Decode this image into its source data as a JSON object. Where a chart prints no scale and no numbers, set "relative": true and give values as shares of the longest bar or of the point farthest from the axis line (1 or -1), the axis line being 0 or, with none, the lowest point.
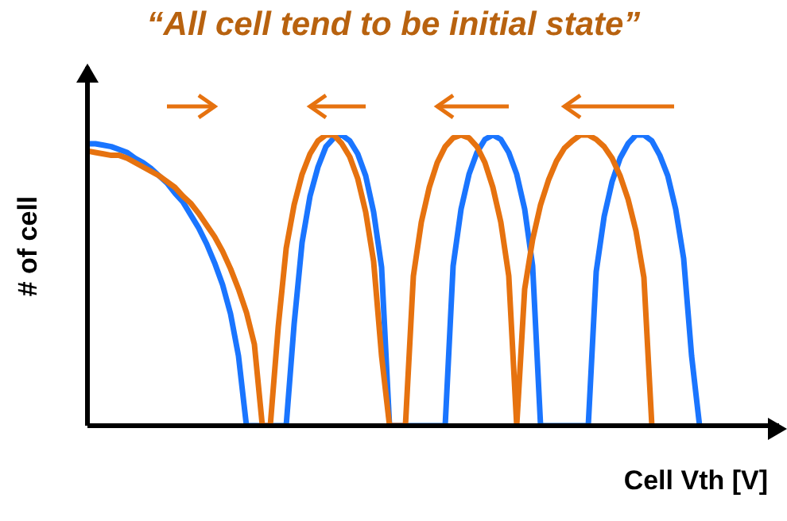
{
  "chart_data": {
    "type": "line",
    "title": "“All cell tend to be initial state”",
    "xlabel": "Cell Vth [V]",
    "ylabel": "# of cell",
    "relative": true,
    "categories": [
      null,
      null,
      null,
      null,
      null,
      null,
      null,
      null,
      null,
      null,
      null,
      null,
      null,
      null,
      null,
      null,
      null,
      null,
      null,
      null,
      null,
      null,
      null,
      null,
      null,
      null,
      null,
      null,
      null,
      null,
      null,
      null,
      null,
      null,
      null,
      null,
      null,
      null,
      null,
      null,
      null,
      null,
      null,
      null,
      null,
      null,
      null,
      null,
      null,
      null,
      null,
      null,
      null,
      null,
      null,
      null,
      null,
      null,
      null,
      null,
      null,
      null,
      null,
      null,
      null,
      null,
      null,
      null,
      null,
      null,
      null,
      null,
      null,
      null,
      null,
      null,
      null,
      null
    ],
    "series": [
      {
        "color": "#1a75ff",
        "values": [
          0.97,
          0.97,
          0.965,
          0.96,
          0.95,
          0.94,
          0.92,
          0.905,
          0.885,
          0.86,
          0.835,
          0.8,
          0.77,
          0.725,
          0.68,
          0.625,
          0.56,
          0.485,
          0.385,
          0.24,
          0,
          null,
          null,
          null,
          null,
          0,
          0.35,
          0.63,
          0.79,
          0.89,
          0.96,
          0.99,
          1,
          0.98,
          0.935,
          0.86,
          0.735,
          0.545,
          0,
          null,
          null,
          null,
          null,
          null,
          null,
          0,
          0.55,
          0.745,
          0.865,
          0.94,
          0.985,
          1,
          0.985,
          0.94,
          0.865,
          0.745,
          0.55,
          0,
          null,
          null,
          null,
          null,
          null,
          0,
          0.53,
          0.72,
          0.84,
          0.92,
          0.97,
          1,
          1,
          0.98,
          0.93,
          0.86,
          0.745,
          0.575,
          0.24,
          0
        ]
      },
      {
        "color": "#e6720f",
        "values": [
          0.945,
          0.94,
          0.935,
          0.93,
          0.93,
          0.92,
          0.905,
          0.89,
          0.875,
          0.86,
          0.84,
          0.82,
          0.79,
          0.765,
          0.73,
          0.69,
          0.65,
          0.6,
          0.54,
          0.47,
          0.39,
          0.28,
          0,
          0,
          0.34,
          0.61,
          0.76,
          0.865,
          0.935,
          0.98,
          1,
          1,
          0.97,
          0.925,
          0.85,
          0.735,
          0.565,
          0.24,
          0,
          null,
          0,
          0.515,
          0.7,
          0.82,
          0.905,
          0.96,
          0.99,
          1,
          0.99,
          0.96,
          0.905,
          0.82,
          0.7,
          0.515,
          0,
          0.47,
          0.64,
          0.76,
          0.845,
          0.91,
          0.955,
          0.98,
          1,
          1,
          0.985,
          0.96,
          0.92,
          0.86,
          0.78,
          0.67,
          0.51,
          0,
          null,
          null,
          null,
          null,
          null,
          null
        ]
      }
    ]
  }
}
